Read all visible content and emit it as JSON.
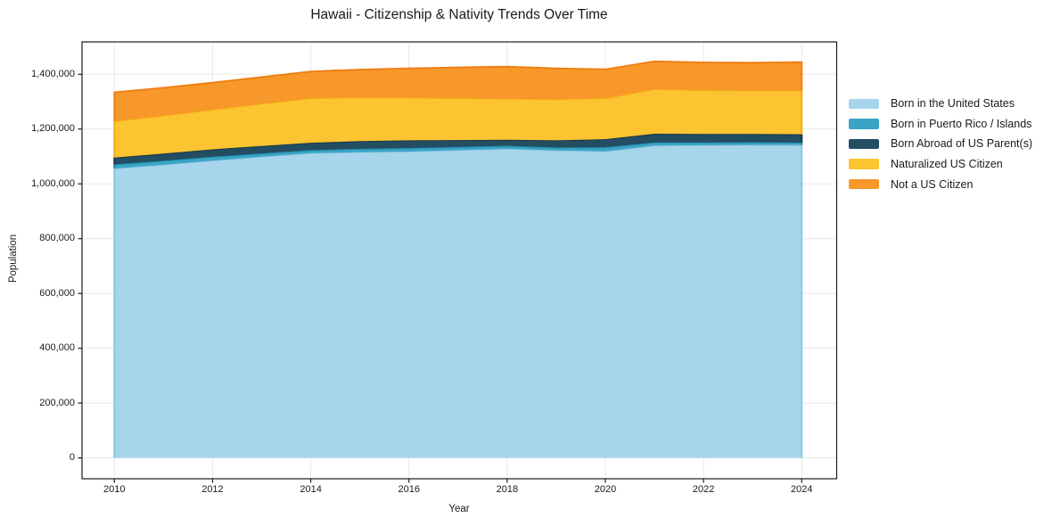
{
  "title": "Hawaii - Citizenship & Nativity Trends Over Time",
  "axes": {
    "xlabel": "Year",
    "ylabel": "Population",
    "xtick_labels": [
      "2010",
      "2012",
      "2014",
      "2016",
      "2018",
      "2020",
      "2022",
      "2024"
    ],
    "ytick_labels": [
      "0",
      "200,000",
      "400,000",
      "600,000",
      "800,000",
      "1,000,000",
      "1,200,000",
      "1,400,000"
    ]
  },
  "chart_data": {
    "type": "area",
    "stacked": true,
    "title": "Hawaii - Citizenship & Nativity Trends Over Time",
    "xlabel": "Year",
    "ylabel": "Population",
    "x": [
      2010,
      2011,
      2012,
      2013,
      2014,
      2015,
      2016,
      2017,
      2018,
      2019,
      2020,
      2021,
      2022,
      2023,
      2024
    ],
    "xticks": [
      2010,
      2012,
      2014,
      2016,
      2018,
      2020,
      2022,
      2024
    ],
    "yticks": [
      0,
      200000,
      400000,
      600000,
      800000,
      1000000,
      1200000,
      1400000
    ],
    "xlim": [
      2009.35,
      2024.7
    ],
    "ylim": [
      0,
      1518000
    ],
    "grid": true,
    "legend_position": "right-outside",
    "series": [
      {
        "name": "Born in the United States",
        "color": "#a6d5ec",
        "edge_color": "#8cc7e0",
        "values": [
          1056000,
          1070000,
          1085000,
          1099000,
          1112000,
          1116000,
          1118000,
          1123000,
          1128000,
          1122000,
          1119000,
          1140000,
          1141000,
          1142000,
          1142000
        ]
      },
      {
        "name": "Born in Puerto Rico / Islands",
        "color": "#3ba4c5",
        "edge_color": "#1f8cad",
        "values": [
          15000,
          14500,
          14000,
          12500,
          11000,
          12000,
          13000,
          12000,
          11000,
          11000,
          15000,
          11000,
          10000,
          10000,
          9000
        ]
      },
      {
        "name": "Born Abroad of US Parent(s)",
        "color": "#234d61",
        "edge_color": "#16394b",
        "values": [
          25000,
          26000,
          27000,
          27000,
          27000,
          28000,
          28000,
          25000,
          22000,
          26000,
          29000,
          32000,
          31000,
          30000,
          30000
        ]
      },
      {
        "name": "Naturalized US Citizen",
        "color": "#fdc431",
        "edge_color": "#f5ab17",
        "values": [
          133000,
          139000,
          145000,
          154000,
          163000,
          160000,
          156000,
          153000,
          150000,
          150000,
          150000,
          163000,
          160000,
          159000,
          160000
        ]
      },
      {
        "name": "Not a US Citizen",
        "color": "#f8982b",
        "edge_color": "#ef7f14",
        "values": [
          105000,
          101000,
          98000,
          97000,
          97000,
          101000,
          106000,
          112000,
          117000,
          112000,
          105000,
          101000,
          101000,
          101000,
          103000
        ]
      }
    ],
    "totals": [
      1334000,
      1350500,
      1369000,
      1389500,
      1410000,
      1417000,
      1421000,
      1425000,
      1428000,
      1421000,
      1418000,
      1447000,
      1443000,
      1442000,
      1444000
    ]
  },
  "style": {
    "grid_color": "#e8e8e8",
    "spine_color": "#1a1a1a",
    "text_color": "#1a1a1a",
    "background": "#ffffff"
  }
}
